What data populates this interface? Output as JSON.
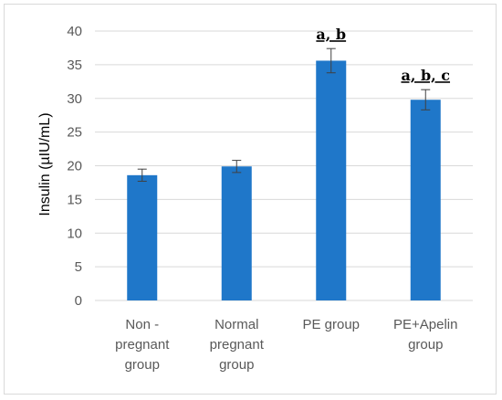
{
  "chart_data": {
    "type": "bar",
    "categories": [
      [
        "Non -",
        "pregnant",
        "group"
      ],
      [
        "Normal",
        "pregnant",
        "group"
      ],
      [
        "PE group"
      ],
      [
        "PE+Apelin",
        "group"
      ]
    ],
    "values": [
      18.6,
      19.9,
      35.6,
      29.8
    ],
    "error": [
      0.9,
      0.9,
      1.8,
      1.5
    ],
    "annotations": [
      "",
      "",
      "a, b",
      "a, b, c"
    ],
    "title": "",
    "xlabel": "",
    "ylabel": "Insulin (µIU/mL)",
    "ylim": [
      0,
      40
    ],
    "yticks": [
      0,
      5,
      10,
      15,
      20,
      25,
      30,
      35,
      40
    ],
    "grid": true,
    "legend": "none",
    "bar_color": "#1f77c9",
    "grid_color": "#d9d9d9"
  }
}
